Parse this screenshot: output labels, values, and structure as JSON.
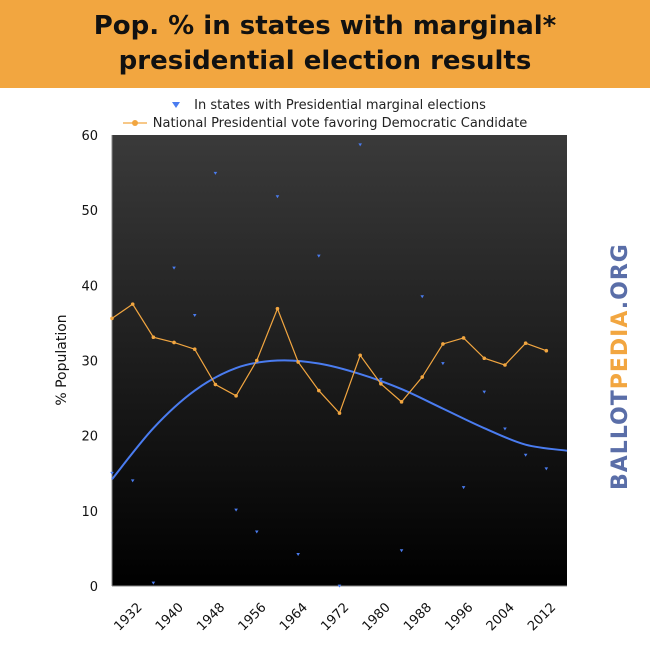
{
  "title": {
    "line1": "Pop. % in states with marginal*",
    "line2": "presidential election results"
  },
  "brand": {
    "part1": "BALLOT",
    "part2": "PEDIA",
    "part3": ".ORG",
    "color_primary": "#5a6ea8",
    "color_accent": "#f2a640"
  },
  "colors": {
    "banner": "#f2a640",
    "series_marginal": "#4a7cf0",
    "series_democratic": "#f2a640",
    "plot_bg_top": "#3a3a3a",
    "plot_bg_bottom": "#000000"
  },
  "legend": {
    "placement": "top",
    "items": [
      {
        "label": "In states with Presidential marginal elections",
        "marker": "triangle-down",
        "color": "#4a7cf0"
      },
      {
        "label": "National Presidential vote favoring Democratic Candidate",
        "marker": "circle-line",
        "color": "#f2a640"
      }
    ]
  },
  "chart_data": {
    "type": "scatter",
    "title": "Pop. % in states with marginal* presidential election results",
    "xlabel": "",
    "ylabel": "% Population",
    "xlim": [
      1928,
      2016
    ],
    "ylim": [
      0,
      60
    ],
    "x_ticks": [
      1932,
      1940,
      1948,
      1956,
      1964,
      1972,
      1980,
      1988,
      1996,
      2004,
      2012
    ],
    "y_ticks": [
      0,
      10,
      20,
      30,
      40,
      50,
      60
    ],
    "grid": false,
    "legend_position": "top",
    "series": [
      {
        "name": "In states with Presidential marginal elections",
        "type": "scatter",
        "marker": "triangle-down",
        "color": "#4a7cf0",
        "points": [
          {
            "x": 1928,
            "y": 15.0
          },
          {
            "x": 1932,
            "y": 14.0
          },
          {
            "x": 1936,
            "y": 0.4
          },
          {
            "x": 1940,
            "y": 42.3
          },
          {
            "x": 1944,
            "y": 36.0
          },
          {
            "x": 1948,
            "y": 54.9
          },
          {
            "x": 1952,
            "y": 10.1
          },
          {
            "x": 1956,
            "y": 7.2
          },
          {
            "x": 1960,
            "y": 51.8
          },
          {
            "x": 1964,
            "y": 4.2
          },
          {
            "x": 1968,
            "y": 43.9
          },
          {
            "x": 1972,
            "y": 0.0
          },
          {
            "x": 1976,
            "y": 58.7
          },
          {
            "x": 1980,
            "y": 27.5
          },
          {
            "x": 1984,
            "y": 4.7
          },
          {
            "x": 1988,
            "y": 38.5
          },
          {
            "x": 1992,
            "y": 29.6
          },
          {
            "x": 1996,
            "y": 13.1
          },
          {
            "x": 2000,
            "y": 25.8
          },
          {
            "x": 2004,
            "y": 20.9
          },
          {
            "x": 2008,
            "y": 17.4
          },
          {
            "x": 2012,
            "y": 15.6
          }
        ],
        "trendline": {
          "type": "polynomial",
          "points": [
            {
              "x": 1928,
              "y": 14.2
            },
            {
              "x": 1936,
              "y": 21.0
            },
            {
              "x": 1944,
              "y": 26.0
            },
            {
              "x": 1952,
              "y": 29.0
            },
            {
              "x": 1960,
              "y": 30.0
            },
            {
              "x": 1968,
              "y": 29.6
            },
            {
              "x": 1976,
              "y": 28.2
            },
            {
              "x": 1984,
              "y": 26.2
            },
            {
              "x": 1992,
              "y": 23.6
            },
            {
              "x": 2000,
              "y": 21.0
            },
            {
              "x": 2008,
              "y": 18.8
            },
            {
              "x": 2016,
              "y": 18.0
            }
          ]
        }
      },
      {
        "name": "National Presidential vote favoring Democratic Candidate",
        "type": "line",
        "marker": "circle",
        "color": "#f2a640",
        "points": [
          {
            "x": 1928,
            "y": 35.6
          },
          {
            "x": 1932,
            "y": 37.5
          },
          {
            "x": 1936,
            "y": 33.1
          },
          {
            "x": 1940,
            "y": 32.4
          },
          {
            "x": 1944,
            "y": 31.5
          },
          {
            "x": 1948,
            "y": 26.8
          },
          {
            "x": 1952,
            "y": 25.3
          },
          {
            "x": 1956,
            "y": 30.0
          },
          {
            "x": 1960,
            "y": 36.9
          },
          {
            "x": 1964,
            "y": 29.8
          },
          {
            "x": 1968,
            "y": 26.0
          },
          {
            "x": 1972,
            "y": 23.0
          },
          {
            "x": 1976,
            "y": 30.7
          },
          {
            "x": 1980,
            "y": 26.9
          },
          {
            "x": 1984,
            "y": 24.5
          },
          {
            "x": 1988,
            "y": 27.8
          },
          {
            "x": 1992,
            "y": 32.2
          },
          {
            "x": 1996,
            "y": 33.0
          },
          {
            "x": 2000,
            "y": 30.3
          },
          {
            "x": 2004,
            "y": 29.4
          },
          {
            "x": 2008,
            "y": 32.3
          },
          {
            "x": 2012,
            "y": 31.3
          }
        ]
      }
    ]
  }
}
